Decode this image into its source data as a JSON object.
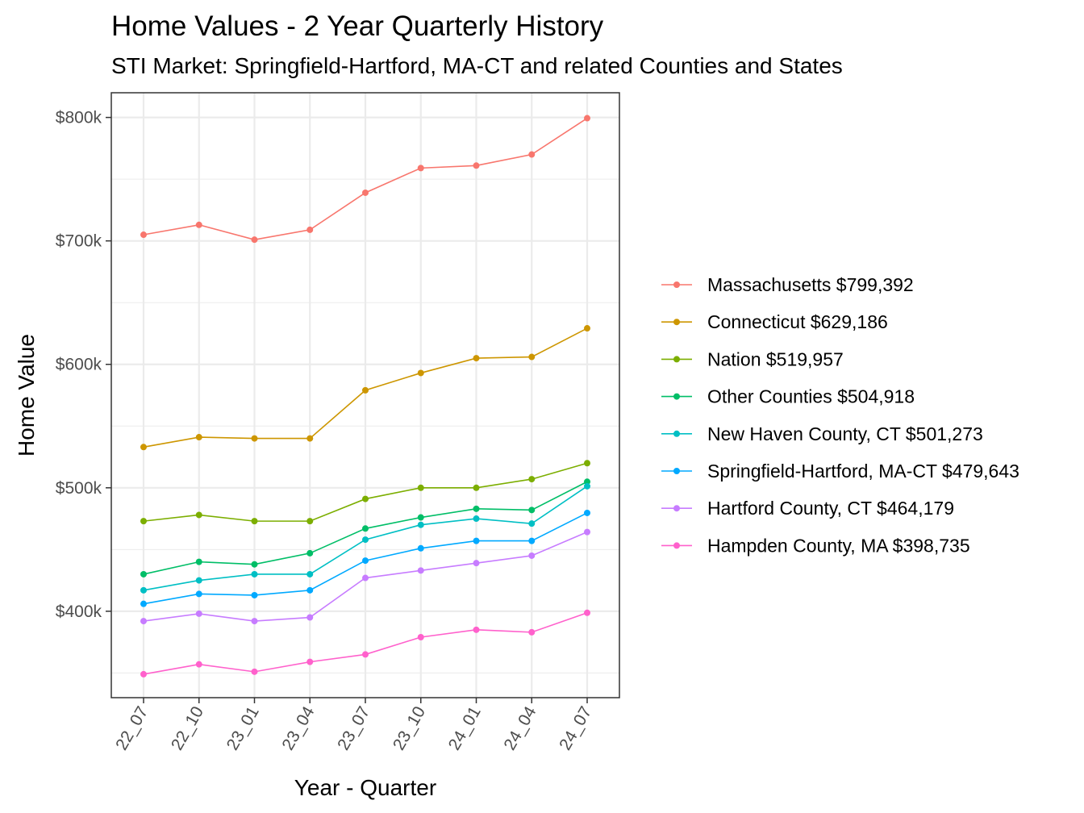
{
  "chart_data": {
    "type": "line",
    "title": "Home Values - 2 Year Quarterly History",
    "subtitle": "STI Market: Springfield-Hartford, MA-CT and related Counties and States",
    "xlabel": "Year - Quarter",
    "ylabel": "Home Value",
    "x": [
      "22_07",
      "22_10",
      "23_01",
      "23_04",
      "23_07",
      "23_10",
      "24_01",
      "24_04",
      "24_07"
    ],
    "ylim": [
      330000,
      820000
    ],
    "y_ticks": [
      400000,
      500000,
      600000,
      700000,
      800000
    ],
    "y_tick_labels": [
      "$400k",
      "$500k",
      "$600k",
      "$700k",
      "$800k"
    ],
    "grid": true,
    "legend_position": "right",
    "series": [
      {
        "name": "Massachusetts $799,392",
        "color": "#F8766D",
        "values": [
          705000,
          713000,
          701000,
          709000,
          739000,
          759000,
          761000,
          770000,
          799392
        ]
      },
      {
        "name": "Connecticut $629,186",
        "color": "#CD9600",
        "values": [
          533000,
          541000,
          540000,
          540000,
          579000,
          593000,
          605000,
          606000,
          629186
        ]
      },
      {
        "name": "Nation $519,957",
        "color": "#7CAE00",
        "values": [
          473000,
          478000,
          473000,
          473000,
          491000,
          500000,
          500000,
          507000,
          519957
        ]
      },
      {
        "name": "Other Counties $504,918",
        "color": "#00BE67",
        "values": [
          430000,
          440000,
          438000,
          447000,
          467000,
          476000,
          483000,
          482000,
          504918
        ]
      },
      {
        "name": "New Haven County, CT $501,273",
        "color": "#00BFC4",
        "values": [
          417000,
          425000,
          430000,
          430000,
          458000,
          470000,
          475000,
          471000,
          501273
        ]
      },
      {
        "name": "Springfield-Hartford, MA-CT $479,643",
        "color": "#00A9FF",
        "values": [
          406000,
          414000,
          413000,
          417000,
          441000,
          451000,
          457000,
          457000,
          479643
        ]
      },
      {
        "name": "Hartford County, CT $464,179",
        "color": "#C77CFF",
        "values": [
          392000,
          398000,
          392000,
          395000,
          427000,
          433000,
          439000,
          445000,
          464179
        ]
      },
      {
        "name": "Hampden County, MA $398,735",
        "color": "#FF61CC",
        "values": [
          349000,
          357000,
          351000,
          359000,
          365000,
          379000,
          385000,
          383000,
          398735
        ]
      }
    ]
  }
}
